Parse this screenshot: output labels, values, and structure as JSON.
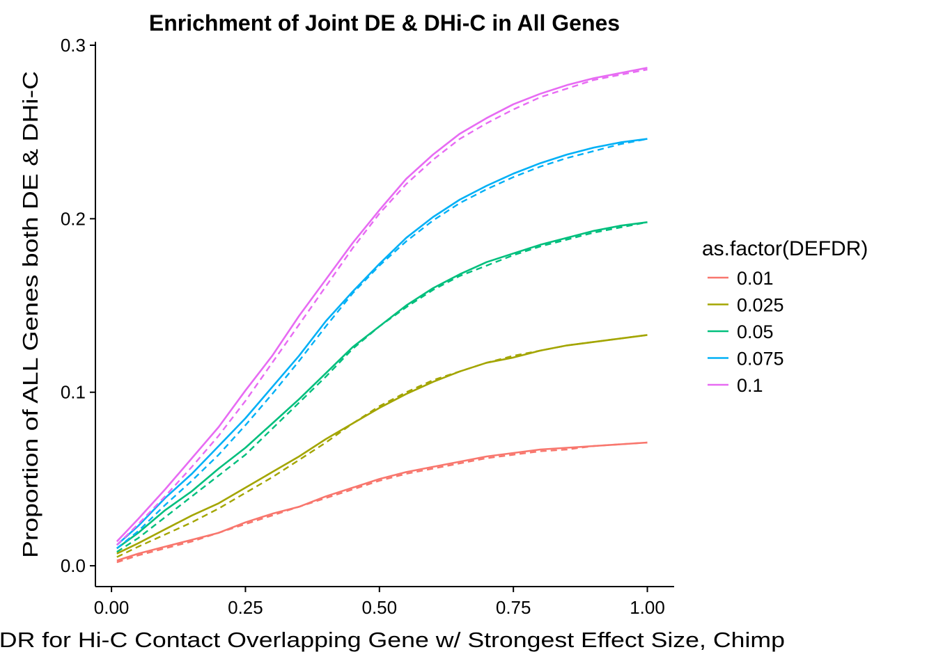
{
  "chart_data": {
    "type": "line",
    "title": "Enrichment of Joint DE & DHi-C in All Genes",
    "xlabel": "FDR for Hi-C Contact Overlapping Gene w/ Strongest Effect Size, Chimp",
    "ylabel": "Proportion of ALL Genes both DE & DHi-C",
    "xlim": [
      -0.03,
      1.05
    ],
    "ylim": [
      -0.012,
      0.302
    ],
    "x_ticks": [
      0.0,
      0.25,
      0.5,
      0.75,
      1.0
    ],
    "x_tick_labels": [
      "0.00",
      "0.25",
      "0.50",
      "0.75",
      "1.00"
    ],
    "y_ticks": [
      0.0,
      0.1,
      0.2,
      0.3
    ],
    "y_tick_labels": [
      "0.0",
      "0.1",
      "0.2",
      "0.3"
    ],
    "grid": false,
    "legend": {
      "title": "as.factor(DEFDR)",
      "position": "right"
    },
    "x": [
      0.01,
      0.05,
      0.1,
      0.15,
      0.2,
      0.25,
      0.3,
      0.35,
      0.4,
      0.45,
      0.5,
      0.55,
      0.6,
      0.65,
      0.7,
      0.75,
      0.8,
      0.85,
      0.9,
      0.95,
      1.0
    ],
    "series": [
      {
        "name": "0.01",
        "color": "#F8766D",
        "values": [
          0.003,
          0.007,
          0.011,
          0.015,
          0.019,
          0.025,
          0.03,
          0.034,
          0.04,
          0.045,
          0.05,
          0.054,
          0.057,
          0.06,
          0.063,
          0.065,
          0.067,
          0.068,
          0.069,
          0.07,
          0.071
        ],
        "fit": [
          0.002,
          0.006,
          0.01,
          0.014,
          0.019,
          0.024,
          0.029,
          0.034,
          0.039,
          0.044,
          0.049,
          0.053,
          0.056,
          0.059,
          0.062,
          0.064,
          0.066,
          0.067,
          0.069,
          0.07,
          0.071
        ]
      },
      {
        "name": "0.025",
        "color": "#A3A500",
        "values": [
          0.007,
          0.013,
          0.021,
          0.029,
          0.036,
          0.045,
          0.054,
          0.063,
          0.073,
          0.082,
          0.091,
          0.099,
          0.106,
          0.112,
          0.117,
          0.12,
          0.124,
          0.127,
          0.129,
          0.131,
          0.133
        ],
        "fit": [
          0.005,
          0.011,
          0.018,
          0.025,
          0.033,
          0.042,
          0.051,
          0.061,
          0.071,
          0.082,
          0.092,
          0.1,
          0.107,
          0.112,
          0.117,
          0.121,
          0.124,
          0.127,
          0.129,
          0.131,
          0.133
        ]
      },
      {
        "name": "0.05",
        "color": "#00BF7D",
        "values": [
          0.01,
          0.019,
          0.032,
          0.043,
          0.056,
          0.068,
          0.082,
          0.096,
          0.111,
          0.126,
          0.138,
          0.15,
          0.16,
          0.168,
          0.175,
          0.18,
          0.185,
          0.189,
          0.193,
          0.196,
          0.198
        ],
        "fit": [
          0.008,
          0.016,
          0.028,
          0.04,
          0.052,
          0.064,
          0.079,
          0.094,
          0.109,
          0.125,
          0.138,
          0.149,
          0.159,
          0.167,
          0.173,
          0.179,
          0.184,
          0.188,
          0.192,
          0.195,
          0.198
        ]
      },
      {
        "name": "0.075",
        "color": "#00B0F6",
        "values": [
          0.012,
          0.023,
          0.039,
          0.053,
          0.069,
          0.085,
          0.103,
          0.121,
          0.141,
          0.158,
          0.174,
          0.189,
          0.201,
          0.211,
          0.219,
          0.226,
          0.232,
          0.237,
          0.241,
          0.244,
          0.246
        ],
        "fit": [
          0.01,
          0.02,
          0.035,
          0.049,
          0.064,
          0.081,
          0.099,
          0.118,
          0.138,
          0.157,
          0.173,
          0.187,
          0.199,
          0.209,
          0.217,
          0.224,
          0.23,
          0.235,
          0.239,
          0.243,
          0.246
        ]
      },
      {
        "name": "0.1",
        "color": "#E76BF3",
        "values": [
          0.014,
          0.027,
          0.044,
          0.062,
          0.08,
          0.101,
          0.121,
          0.144,
          0.165,
          0.186,
          0.205,
          0.223,
          0.237,
          0.249,
          0.258,
          0.266,
          0.272,
          0.277,
          0.281,
          0.284,
          0.287
        ],
        "fit": [
          0.012,
          0.024,
          0.04,
          0.057,
          0.075,
          0.095,
          0.117,
          0.139,
          0.161,
          0.183,
          0.203,
          0.22,
          0.234,
          0.246,
          0.255,
          0.263,
          0.27,
          0.275,
          0.28,
          0.283,
          0.286
        ]
      }
    ]
  }
}
